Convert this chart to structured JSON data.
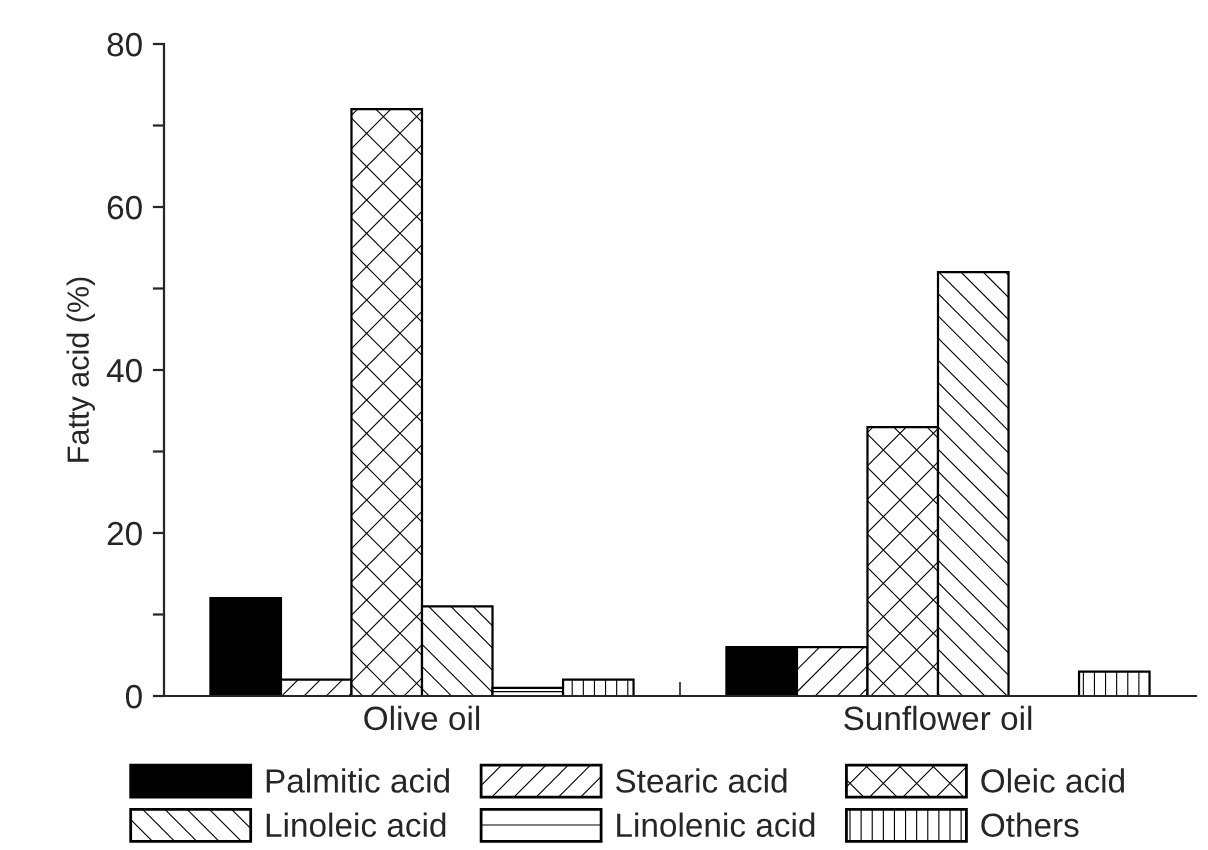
{
  "chart_data": {
    "type": "bar",
    "ylabel": "Fatty acid (%)",
    "categories": [
      "Olive oil",
      "Sunflower oil"
    ],
    "series": [
      {
        "name": "Palmitic acid",
        "color": "#000000",
        "values": [
          12,
          6
        ]
      },
      {
        "name": "Stearic acid",
        "color": "#000000",
        "values": [
          2,
          6
        ]
      },
      {
        "name": "Oleic acid",
        "color": "#000000",
        "values": [
          72,
          33
        ]
      },
      {
        "name": "Linoleic acid",
        "color": "#000000",
        "values": [
          11,
          52
        ]
      },
      {
        "name": "Linolenic acid",
        "color": "#000000",
        "values": [
          1,
          null
        ]
      },
      {
        "name": "Others",
        "color": "#000000",
        "values": [
          2,
          3
        ]
      }
    ],
    "ylim": [
      0,
      80
    ],
    "yticks": [
      0,
      {
        "value": 10,
        "label": null
      },
      20,
      {
        "value": 30,
        "label": null
      },
      40,
      {
        "value": 50,
        "label": null
      },
      60,
      {
        "value": 70,
        "label": null
      },
      80
    ],
    "grid": false,
    "legend": "bottom"
  }
}
